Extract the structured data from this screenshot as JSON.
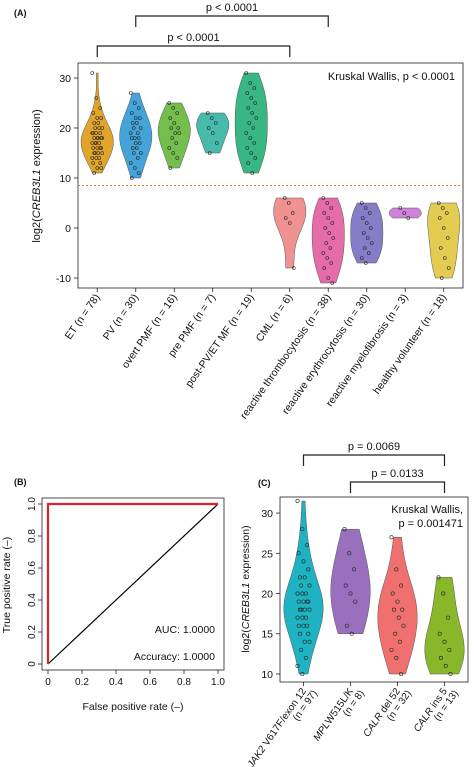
{
  "chart_data": [
    {
      "panel": "(A)",
      "type": "violin",
      "ylabel_prefix": "log2(",
      "ylabel_gene": "CREB3L1",
      "ylabel_suffix": " expression)",
      "ylim": [
        -12,
        33
      ],
      "yticks": [
        -10,
        0,
        10,
        20,
        30
      ],
      "threshold": 8.5,
      "annotation": "Kruskal Wallis, p < 0.0001",
      "brackets": [
        {
          "from": 0,
          "to": 5,
          "label": "p < 0.0001"
        },
        {
          "from": 1,
          "to": 6,
          "label": "p < 0.0001"
        }
      ],
      "categories": [
        "ET (n = 78)",
        "PV (n = 30)",
        "overt PMF (n = 16)",
        "pre PMF (n = 7)",
        "post-PV/ET MF (n = 19)",
        "CML (n = 6)",
        "reactive thrombocytosis (n = 38)",
        "reactive erythrocytosis (n = 30)",
        "reactive myelofibrosis (n = 3)",
        "healthy volunteer (n = 18)"
      ],
      "colors": [
        "#E0A020",
        "#3A9FD8",
        "#6DBB45",
        "#3CB7A8",
        "#2DB37E",
        "#F08C8C",
        "#E463A4",
        "#7E76C4",
        "#C97CD6",
        "#E3C94A"
      ],
      "values": [
        [
          31,
          26,
          24,
          23,
          22,
          22,
          21,
          21,
          20,
          20,
          20,
          19,
          19,
          19,
          19,
          18,
          18,
          18,
          18,
          18,
          17,
          17,
          17,
          17,
          16,
          16,
          16,
          16,
          15,
          15,
          15,
          15,
          14,
          14,
          14,
          13,
          13,
          12,
          12,
          11
        ],
        [
          27,
          25,
          24,
          23,
          22,
          22,
          21,
          21,
          20,
          20,
          19,
          19,
          18,
          18,
          18,
          17,
          17,
          16,
          16,
          15,
          15,
          14,
          13,
          12,
          11,
          10
        ],
        [
          25,
          24,
          23,
          22,
          21,
          20,
          20,
          19,
          19,
          18,
          17,
          16,
          15,
          14,
          12
        ],
        [
          23,
          22,
          21,
          20,
          19,
          17,
          15
        ],
        [
          31,
          29,
          28,
          27,
          26,
          25,
          24,
          23,
          22,
          21,
          20,
          19,
          18,
          17,
          16,
          15,
          14,
          13,
          11
        ],
        [
          6,
          5,
          3,
          2,
          1,
          -8
        ],
        [
          6,
          5,
          4,
          3,
          2,
          1,
          0,
          -1,
          -2,
          -3,
          -4,
          -5,
          -6,
          -7,
          -8,
          -10,
          -11
        ],
        [
          5,
          4,
          3,
          2,
          1,
          0,
          -1,
          -2,
          -3,
          -4,
          -5,
          -6,
          -7
        ],
        [
          4,
          3,
          2
        ],
        [
          5,
          4,
          3,
          2,
          0,
          -2,
          -4,
          -6,
          -8,
          -10
        ]
      ]
    },
    {
      "panel": "(B)",
      "type": "line",
      "xlabel": "False positive rate (–)",
      "ylabel": "True positive rate (–)",
      "xlim": [
        0,
        1
      ],
      "ylim": [
        0,
        1
      ],
      "ticks": [
        "0",
        "0.2",
        "0.4",
        "0.6",
        "0.8",
        "1.0"
      ],
      "series": [
        {
          "color": "#D9232A",
          "x": [
            0,
            0,
            1
          ],
          "y": [
            0,
            1,
            1
          ]
        },
        {
          "color": "#000000",
          "x": [
            0,
            1
          ],
          "y": [
            0,
            1
          ]
        }
      ],
      "auc_label": "AUC: 1.0000",
      "accuracy_label": "Accuracy: 1.0000"
    },
    {
      "panel": "(C)",
      "type": "violin",
      "ylabel_prefix": "log2(",
      "ylabel_gene": "CREB3L1",
      "ylabel_suffix": " expression)",
      "ylim": [
        9,
        32
      ],
      "yticks": [
        10,
        15,
        20,
        25,
        30
      ],
      "annotation_line1": "Kruskal Wallis,",
      "annotation_line2": "p = 0.001471",
      "brackets": [
        {
          "from": 0,
          "to": 3,
          "label": "p = 0.0069"
        },
        {
          "from": 1,
          "to": 3,
          "label": "p = 0.0133"
        }
      ],
      "categories": [
        {
          "italic": "JAK2",
          "rest": " V617F/exon 12",
          "n": "(n = 97)"
        },
        {
          "italic": "MPL",
          "rest": "W515L/K",
          "n": "(n = 8)"
        },
        {
          "italic": "CALR",
          "rest": " del 52",
          "n": "(n = 32)"
        },
        {
          "italic": "CALR",
          "rest": " ins 5",
          "n": "(n = 13)"
        }
      ],
      "colors": [
        "#1FB2C2",
        "#9A6FBE",
        "#F07070",
        "#88B829"
      ],
      "values": [
        [
          31.5,
          28,
          26,
          25,
          24,
          23,
          22,
          22,
          21,
          21,
          20,
          20,
          20,
          19,
          19,
          19,
          19,
          18,
          18,
          18,
          18,
          17,
          17,
          17,
          16,
          16,
          16,
          15,
          15,
          14,
          14,
          13,
          12,
          11,
          10
        ],
        [
          28,
          25,
          23,
          21,
          20,
          19,
          16,
          15
        ],
        [
          27,
          23,
          21,
          20,
          19,
          18,
          18,
          17,
          16,
          15,
          14,
          13,
          12,
          10
        ],
        [
          22,
          20,
          17,
          15,
          14,
          13,
          12,
          11,
          10
        ]
      ]
    }
  ]
}
